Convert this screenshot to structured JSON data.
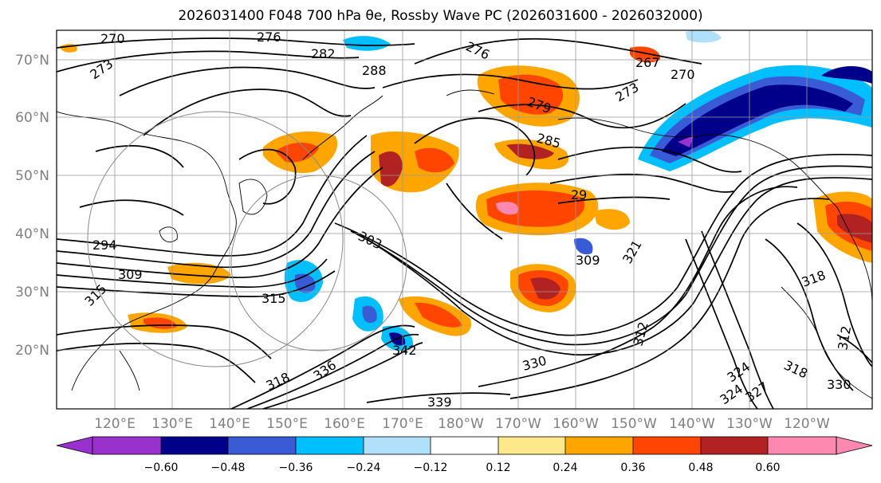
{
  "title": {
    "text": "2026031400 F048 700 hPa θe, Rossby Wave PC (2026031600 - 2026032000)"
  },
  "map": {
    "lat_labels": [
      "70°N",
      "60°N",
      "50°N",
      "40°N",
      "30°N",
      "20°N"
    ],
    "lon_labels": [
      "120°E",
      "130°E",
      "140°E",
      "150°E",
      "160°E",
      "170°E",
      "180°W",
      "170°W",
      "160°W",
      "150°W",
      "140°W",
      "130°W",
      "120°W"
    ],
    "contour_labels": [
      "270",
      "276",
      "282",
      "288",
      "276",
      "267",
      "270",
      "273",
      "273",
      "279",
      "285",
      "29",
      "294",
      "309",
      "303",
      "315",
      "309",
      "321",
      "318",
      "315",
      "342",
      "330",
      "318",
      "336",
      "339",
      "324",
      "324",
      "327",
      "330",
      "318",
      "312",
      "312"
    ],
    "colors": {
      "land_line": "#000000",
      "grid": "#9a9a9a",
      "contour": "#000000"
    }
  },
  "colorbar": {
    "ticks": [
      "−0.60",
      "−0.48",
      "−0.36",
      "−0.24",
      "−0.12",
      "0.12",
      "0.24",
      "0.36",
      "0.48",
      "0.60"
    ],
    "colors": [
      "#9932cc",
      "#00008b",
      "#3a5bd6",
      "#00bfff",
      "#b0e0fa",
      "#ffffff",
      "#ffe88a",
      "#ffa500",
      "#ff4500",
      "#b22222",
      "#ff88b0"
    ]
  }
}
